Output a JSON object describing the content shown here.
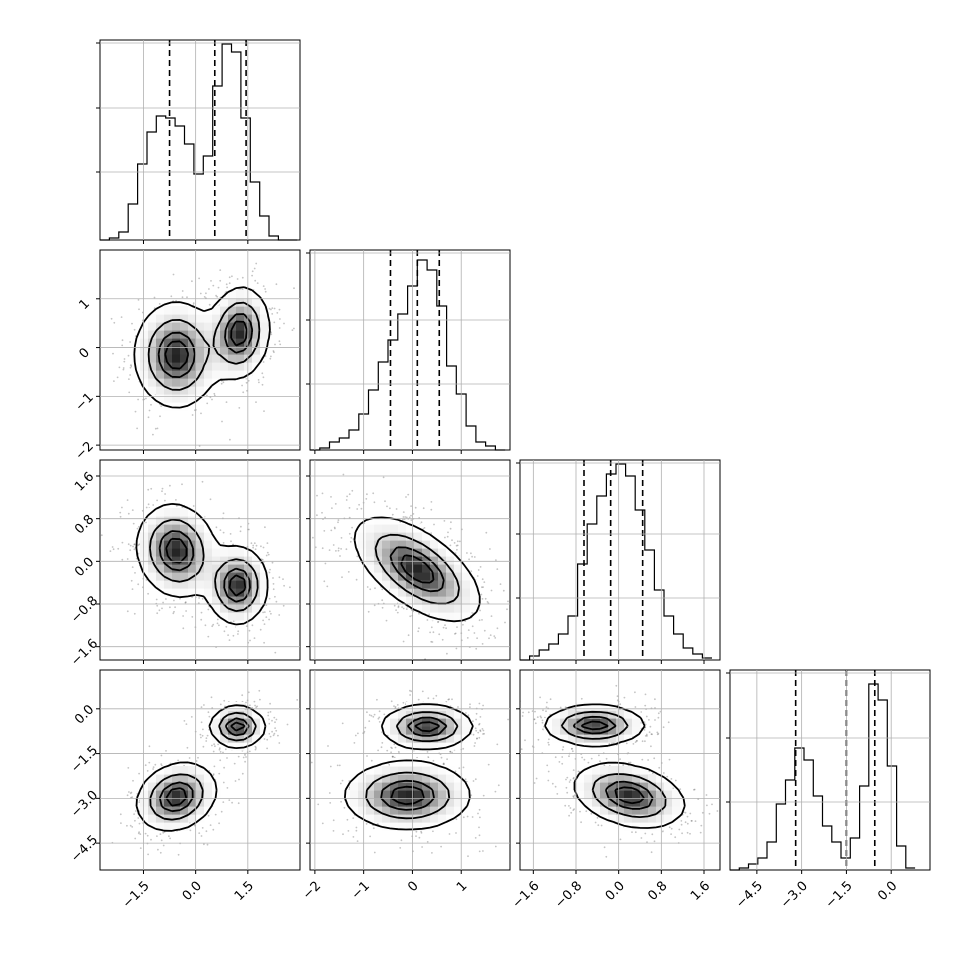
{
  "chart_data": {
    "type": "corner",
    "n_params": 4,
    "parameters": [
      {
        "index": 0,
        "range": [
          -2.75,
          3.0
        ],
        "ticks": [
          "−1.5",
          "0.0",
          "1.5"
        ],
        "tick_values": [
          -1.5,
          0.0,
          1.5
        ],
        "quantiles": [
          -0.75,
          0.55,
          1.45
        ],
        "hist": {
          "edges": [
            -2.75,
            -2.48,
            -2.21,
            -1.94,
            -1.67,
            -1.4,
            -1.13,
            -0.86,
            -0.59,
            -0.32,
            -0.05,
            0.22,
            0.49,
            0.76,
            1.03,
            1.3,
            1.57,
            1.84,
            2.11,
            2.38,
            2.65,
            2.92
          ],
          "counts": [
            0.0,
            0.01,
            0.04,
            0.18,
            0.38,
            0.54,
            0.62,
            0.61,
            0.57,
            0.48,
            0.33,
            0.42,
            0.77,
            0.98,
            0.94,
            0.61,
            0.29,
            0.12,
            0.02,
            0.0,
            0.0
          ]
        },
        "ylim": [
          0,
          1.0
        ],
        "hgrid": [
          0.34,
          0.66,
          0.985
        ]
      },
      {
        "index": 1,
        "range": [
          -2.1,
          2.0
        ],
        "ticks": [
          "−2",
          "−1",
          "0",
          "1"
        ],
        "tick_values": [
          -2,
          -1,
          0,
          1
        ],
        "quantiles": [
          -0.45,
          0.1,
          0.55
        ],
        "hist": {
          "edges": [
            -2.1,
            -1.9,
            -1.7,
            -1.5,
            -1.3,
            -1.1,
            -0.9,
            -0.7,
            -0.5,
            -0.3,
            -0.1,
            0.1,
            0.3,
            0.5,
            0.7,
            0.9,
            1.1,
            1.3,
            1.5,
            1.7,
            1.9
          ],
          "counts": [
            0.0,
            0.01,
            0.04,
            0.06,
            0.1,
            0.18,
            0.3,
            0.44,
            0.55,
            0.68,
            0.82,
            0.95,
            0.9,
            0.72,
            0.42,
            0.28,
            0.12,
            0.04,
            0.02,
            0.0
          ]
        },
        "ylim": [
          0,
          1.0
        ],
        "hgrid": [
          0.33,
          0.65,
          0.985
        ]
      },
      {
        "index": 2,
        "range": [
          -1.85,
          1.9
        ],
        "ticks": [
          "−1.6",
          "−0.8",
          "0.0",
          "0.8",
          "1.6"
        ],
        "tick_values": [
          -1.6,
          -0.8,
          0.0,
          0.8,
          1.6
        ],
        "quantiles": [
          -0.65,
          -0.15,
          0.45
        ],
        "hist": {
          "edges": [
            -1.85,
            -1.67,
            -1.49,
            -1.31,
            -1.13,
            -0.95,
            -0.77,
            -0.59,
            -0.41,
            -0.23,
            -0.05,
            0.13,
            0.31,
            0.49,
            0.67,
            0.85,
            1.03,
            1.21,
            1.39,
            1.57,
            1.75
          ],
          "counts": [
            0.0,
            0.02,
            0.05,
            0.08,
            0.13,
            0.22,
            0.48,
            0.68,
            0.82,
            0.93,
            0.98,
            0.92,
            0.75,
            0.55,
            0.35,
            0.22,
            0.13,
            0.06,
            0.03,
            0.01
          ]
        },
        "ylim": [
          0,
          1.0
        ],
        "hgrid": [
          0.31,
          0.63,
          0.985
        ]
      },
      {
        "index": 3,
        "range": [
          -5.4,
          1.3
        ],
        "ticks": [
          "−4.5",
          "−3.0",
          "−1.5",
          "0.0"
        ],
        "tick_values": [
          -4.5,
          -3.0,
          -1.5,
          0.0
        ],
        "quantiles": [
          -3.2,
          -1.5,
          -0.55
        ],
        "hist": {
          "edges": [
            -5.4,
            -5.09,
            -4.78,
            -4.47,
            -4.16,
            -3.85,
            -3.54,
            -3.23,
            -2.92,
            -2.61,
            -2.3,
            -1.99,
            -1.68,
            -1.37,
            -1.06,
            -0.75,
            -0.44,
            -0.13,
            0.18,
            0.49,
            0.8
          ],
          "counts": [
            0.0,
            0.01,
            0.03,
            0.06,
            0.14,
            0.33,
            0.45,
            0.61,
            0.55,
            0.37,
            0.22,
            0.14,
            0.06,
            0.16,
            0.42,
            0.93,
            0.85,
            0.52,
            0.12,
            0.01
          ]
        },
        "ylim": [
          0,
          1.0
        ],
        "hgrid": [
          0.34,
          0.66,
          0.985
        ]
      }
    ],
    "pairs": [
      {
        "x": 0,
        "y": 1,
        "modes": [
          {
            "cx": -0.55,
            "cy": -0.15,
            "sx": 0.58,
            "sy": 0.52,
            "rho": 0.0,
            "w": 0.5
          },
          {
            "cx": 1.25,
            "cy": 0.3,
            "sx": 0.42,
            "sy": 0.45,
            "rho": 0.1,
            "w": 0.5
          }
        ]
      },
      {
        "x": 0,
        "y": 2,
        "modes": [
          {
            "cx": -0.55,
            "cy": 0.2,
            "sx": 0.55,
            "sy": 0.42,
            "rho": -0.1,
            "w": 0.5
          },
          {
            "cx": 1.2,
            "cy": -0.45,
            "sx": 0.42,
            "sy": 0.35,
            "rho": 0.0,
            "w": 0.5
          }
        ]
      },
      {
        "x": 0,
        "y": 3,
        "modes": [
          {
            "cx": -0.55,
            "cy": -2.95,
            "sx": 0.55,
            "sy": 0.55,
            "rho": 0.2,
            "w": 0.5
          },
          {
            "cx": 1.2,
            "cy": -0.6,
            "sx": 0.38,
            "sy": 0.33,
            "rho": 0.0,
            "w": 0.5
          }
        ]
      },
      {
        "x": 1,
        "y": 2,
        "modes": [
          {
            "cx": 0.1,
            "cy": -0.15,
            "sx": 0.62,
            "sy": 0.47,
            "rho": -0.6,
            "w": 1.0
          }
        ]
      },
      {
        "x": 1,
        "y": 3,
        "modes": [
          {
            "cx": 0.3,
            "cy": -0.6,
            "sx": 0.45,
            "sy": 0.35,
            "rho": 0.0,
            "w": 0.5
          },
          {
            "cx": -0.1,
            "cy": -2.9,
            "sx": 0.62,
            "sy": 0.55,
            "rho": 0.0,
            "w": 0.5
          }
        ]
      },
      {
        "x": 2,
        "y": 3,
        "modes": [
          {
            "cx": -0.45,
            "cy": -0.55,
            "sx": 0.45,
            "sy": 0.32,
            "rho": 0.0,
            "w": 0.5
          },
          {
            "cx": 0.2,
            "cy": -2.9,
            "sx": 0.5,
            "sy": 0.52,
            "rho": -0.3,
            "w": 0.5
          }
        ]
      }
    ],
    "contour_levels": [
      0.12,
      0.39,
      0.68,
      0.86
    ],
    "grid": true,
    "title": "",
    "legend": "none"
  }
}
